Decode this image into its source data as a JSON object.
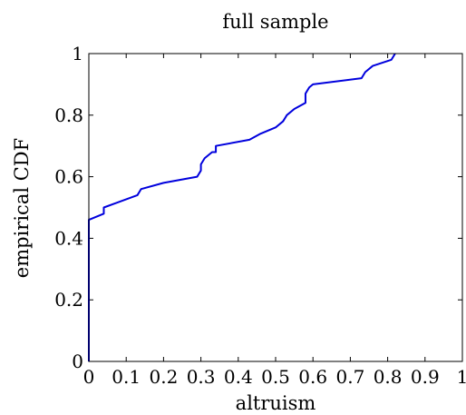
{
  "chart_data": {
    "type": "line",
    "title": "full sample",
    "xlabel": "altruism",
    "ylabel": "empirical CDF",
    "xlim": [
      0,
      1
    ],
    "ylim": [
      0,
      1
    ],
    "x_ticks": [
      0,
      0.1,
      0.2,
      0.3,
      0.4,
      0.5,
      0.6,
      0.7,
      0.8,
      0.9,
      1
    ],
    "x_tick_labels": [
      "0",
      "0.1",
      "0.2",
      "0.3",
      "0.4",
      "0.5",
      "0.6",
      "0.7",
      "0.8",
      "0.9",
      "1"
    ],
    "y_ticks": [
      0,
      0.2,
      0.4,
      0.6,
      0.8,
      1
    ],
    "y_tick_labels": [
      "0",
      "0.2",
      "0.4",
      "0.6",
      "0.8",
      "1"
    ],
    "grid": false,
    "legend": "none",
    "series": [
      {
        "color": "#0000dd",
        "x": [
          0,
          0,
          0.04,
          0.04,
          0.13,
          0.14,
          0.2,
          0.29,
          0.3,
          0.3,
          0.31,
          0.33,
          0.34,
          0.34,
          0.43,
          0.46,
          0.5,
          0.52,
          0.53,
          0.55,
          0.58,
          0.58,
          0.59,
          0.6,
          0.73,
          0.74,
          0.76,
          0.81,
          0.82
        ],
        "y": [
          0,
          0.46,
          0.48,
          0.5,
          0.54,
          0.56,
          0.58,
          0.6,
          0.62,
          0.64,
          0.66,
          0.68,
          0.68,
          0.7,
          0.72,
          0.74,
          0.76,
          0.78,
          0.8,
          0.82,
          0.84,
          0.87,
          0.89,
          0.9,
          0.92,
          0.94,
          0.96,
          0.98,
          1.0
        ]
      }
    ]
  }
}
